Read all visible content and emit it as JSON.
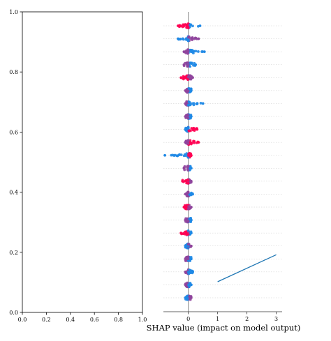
{
  "chart_data": [
    {
      "type": "line",
      "title": "",
      "xlabel": "",
      "ylabel": "",
      "xlim": [
        0.0,
        1.0
      ],
      "ylim": [
        0.0,
        1.0
      ],
      "x_ticks": [
        "0.0",
        "0.2",
        "0.4",
        "0.6",
        "0.8",
        "1.0"
      ],
      "y_ticks": [
        "0.0",
        "0.2",
        "0.4",
        "0.6",
        "0.8",
        "1.0"
      ],
      "series": [],
      "grid": false
    },
    {
      "type": "scatter",
      "subtype": "shap-beeswarm",
      "title": "",
      "xlabel": "SHAP value (impact on model output)",
      "ylabel": "",
      "xlim": [
        -0.85,
        3.2
      ],
      "x_ticks": [
        "0",
        "1",
        "2",
        "3"
      ],
      "colormap": [
        "#1e88e5",
        "#ff0052"
      ],
      "zero_line": 0,
      "grid": "horizontal-dashed",
      "rows": [
        {
          "min": -0.35,
          "max": 0.4,
          "neg": "red",
          "pos": "blue"
        },
        {
          "min": -0.35,
          "max": 0.35,
          "neg": "blue",
          "pos": "purple"
        },
        {
          "min": -0.15,
          "max": 0.55,
          "neg": "purple",
          "pos": "blue"
        },
        {
          "min": -0.15,
          "max": 0.25,
          "neg": "purple",
          "pos": "blue"
        },
        {
          "min": -0.25,
          "max": 0.15,
          "neg": "red",
          "pos": "purple"
        },
        {
          "min": -0.1,
          "max": 0.1,
          "neg": "purple",
          "pos": "blue"
        },
        {
          "min": -0.1,
          "max": 0.5,
          "neg": "purple",
          "pos": "blue"
        },
        {
          "min": -0.1,
          "max": 0.1,
          "neg": "purple",
          "pos": "blue"
        },
        {
          "min": -0.1,
          "max": 0.3,
          "neg": "blue",
          "pos": "red"
        },
        {
          "min": -0.1,
          "max": 0.35,
          "neg": "purple",
          "pos": "red"
        },
        {
          "min": -0.8,
          "max": 0.1,
          "neg": "blue",
          "pos": "red"
        },
        {
          "min": -0.15,
          "max": 0.1,
          "neg": "purple",
          "pos": "blue"
        },
        {
          "min": -0.2,
          "max": 0.1,
          "neg": "red",
          "pos": "purple"
        },
        {
          "min": -0.1,
          "max": 0.15,
          "neg": "purple",
          "pos": "blue"
        },
        {
          "min": -0.15,
          "max": 0.1,
          "neg": "red",
          "pos": "purple"
        },
        {
          "min": -0.1,
          "max": 0.1,
          "neg": "purple",
          "pos": "blue"
        },
        {
          "min": -0.25,
          "max": 0.1,
          "neg": "red",
          "pos": "blue"
        },
        {
          "min": -0.1,
          "max": 0.1,
          "neg": "blue",
          "pos": "purple"
        },
        {
          "min": -0.1,
          "max": 0.1,
          "neg": "purple",
          "pos": "blue"
        },
        {
          "min": -0.1,
          "max": 0.15,
          "neg": "purple",
          "pos": "blue"
        },
        {
          "min": -0.1,
          "max": 0.1,
          "neg": "purple",
          "pos": "blue"
        },
        {
          "min": -0.1,
          "max": 0.1,
          "neg": "blue",
          "pos": "purple"
        }
      ],
      "line_series": [
        {
          "color": "#1f77b4",
          "x": [
            1.0,
            3.0
          ],
          "y_frac": [
            0.1,
            0.19
          ]
        }
      ]
    }
  ]
}
